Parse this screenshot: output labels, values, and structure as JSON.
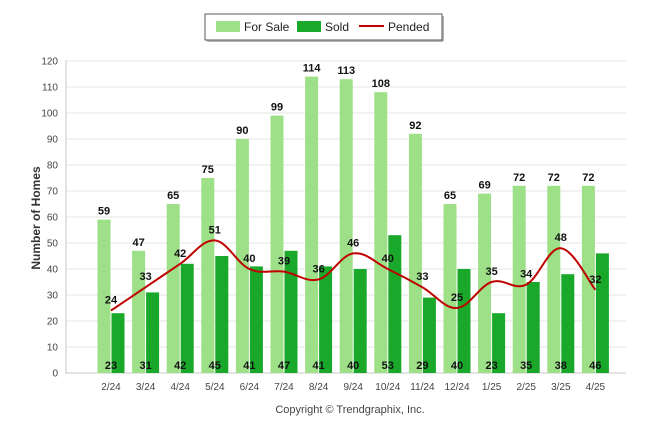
{
  "chart_data": {
    "type": "bar",
    "categories": [
      "2/24",
      "3/24",
      "4/24",
      "5/24",
      "6/24",
      "7/24",
      "8/24",
      "9/24",
      "10/24",
      "11/24",
      "12/24",
      "1/25",
      "2/25",
      "3/25",
      "4/25"
    ],
    "series": [
      {
        "name": "For Sale",
        "kind": "bar",
        "color": "#9de087",
        "values": [
          59,
          47,
          65,
          75,
          90,
          99,
          114,
          113,
          108,
          92,
          65,
          69,
          72,
          72,
          72
        ]
      },
      {
        "name": "Sold",
        "kind": "bar",
        "color": "#1aa82a",
        "values": [
          23,
          31,
          42,
          45,
          41,
          47,
          41,
          40,
          53,
          29,
          40,
          23,
          35,
          38,
          46
        ]
      },
      {
        "name": "Pended",
        "kind": "line",
        "color": "#c00000",
        "values": [
          24,
          33,
          42,
          51,
          40,
          39,
          36,
          46,
          40,
          33,
          25,
          35,
          34,
          48,
          32
        ]
      }
    ],
    "ylabel": "Number of Homes",
    "ylim": [
      0,
      120
    ],
    "yticks": [
      0,
      10,
      20,
      30,
      40,
      50,
      60,
      70,
      80,
      90,
      100,
      110,
      120
    ],
    "grid": true,
    "legend_position": "top-center"
  },
  "footer": {
    "copyright": "Copyright © Trendgraphix, Inc."
  }
}
